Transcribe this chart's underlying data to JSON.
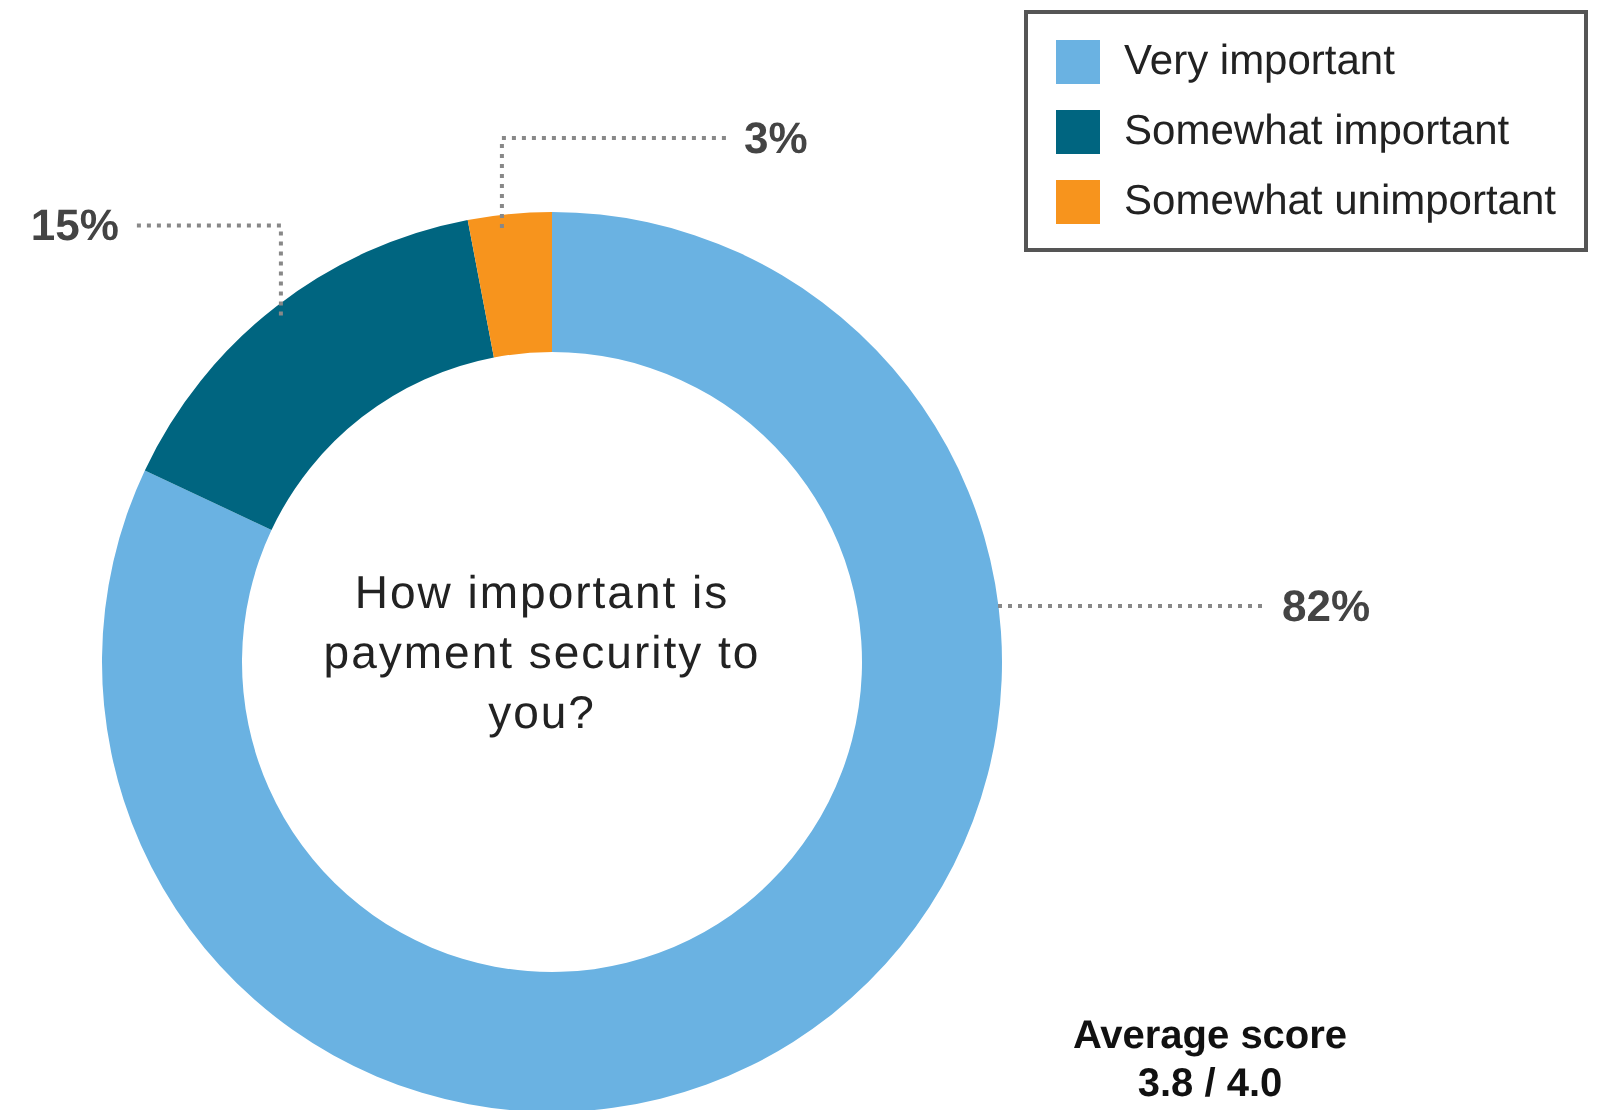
{
  "chart_data": {
    "type": "donut",
    "title": "How important is payment security to you?",
    "categories": [
      "Very important",
      "Somewhat important",
      "Somewhat unimportant"
    ],
    "values": [
      82,
      15,
      3
    ],
    "colors": [
      "#6ab2e2",
      "#006580",
      "#f7941d"
    ],
    "value_labels": [
      "82%",
      "15%",
      "3%"
    ],
    "legend": "top right",
    "annotations": [
      "Average score\n3.8 / 4.0"
    ]
  }
}
